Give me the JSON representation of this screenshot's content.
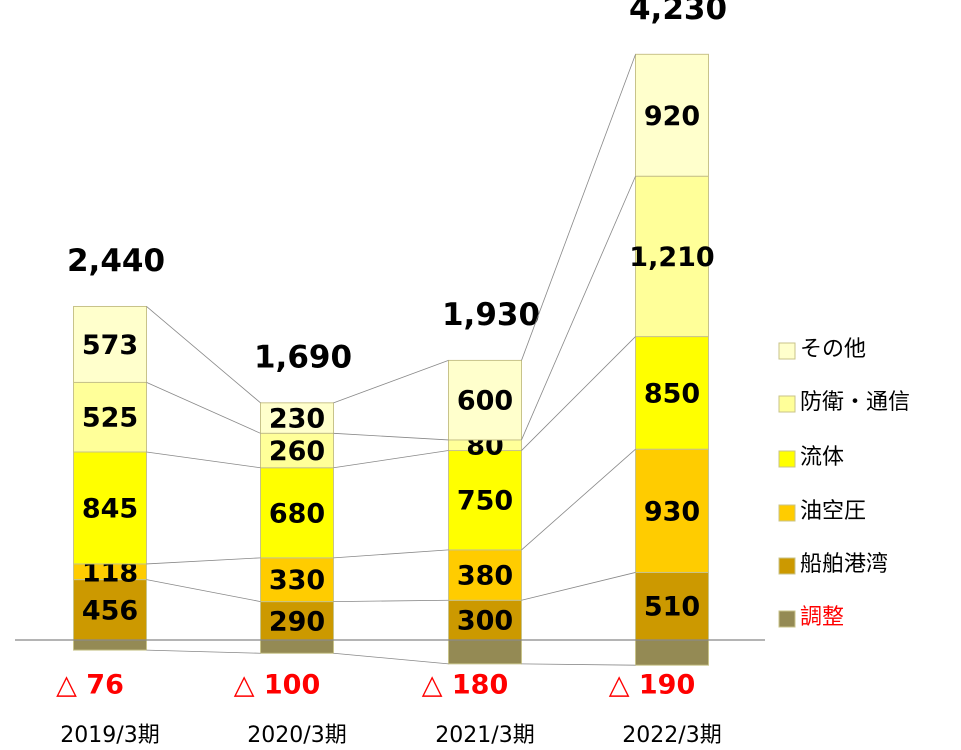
{
  "chart_data": {
    "type": "stacked_bar",
    "categories": [
      "2019/3期",
      "2020/3期",
      "2021/3期",
      "2022/3期"
    ],
    "series": [
      {
        "name": "調整",
        "color": "#948a54",
        "label_color": "#ff0000",
        "legend_color": "#ff0000",
        "values": [
          -76,
          -100,
          -180,
          -190
        ],
        "value_labels": [
          "△ 76",
          "△ 100",
          "△ 180",
          "△ 190"
        ]
      },
      {
        "name": "船舶港湾",
        "color": "#cc9900",
        "values": [
          456,
          290,
          300,
          510
        ]
      },
      {
        "name": "油空圧",
        "color": "#ffcc00",
        "values": [
          118,
          330,
          380,
          930
        ]
      },
      {
        "name": "流体",
        "color": "#ffff00",
        "values": [
          845,
          680,
          750,
          850
        ]
      },
      {
        "name": "防衛・通信",
        "color": "#ffff99",
        "values": [
          525,
          260,
          80,
          1210
        ],
        "value_labels": [
          "525",
          "260",
          "80",
          "1,210"
        ]
      },
      {
        "name": "その他",
        "color": "#ffffcc",
        "values": [
          573,
          230,
          600,
          920
        ]
      }
    ],
    "totals": {
      "values": [
        2440,
        1690,
        1930,
        4230
      ],
      "value_labels": [
        "2,440",
        "1,690",
        "1,930",
        "4,230"
      ]
    },
    "ylim": [
      -830,
      4830
    ],
    "legend": "right"
  }
}
